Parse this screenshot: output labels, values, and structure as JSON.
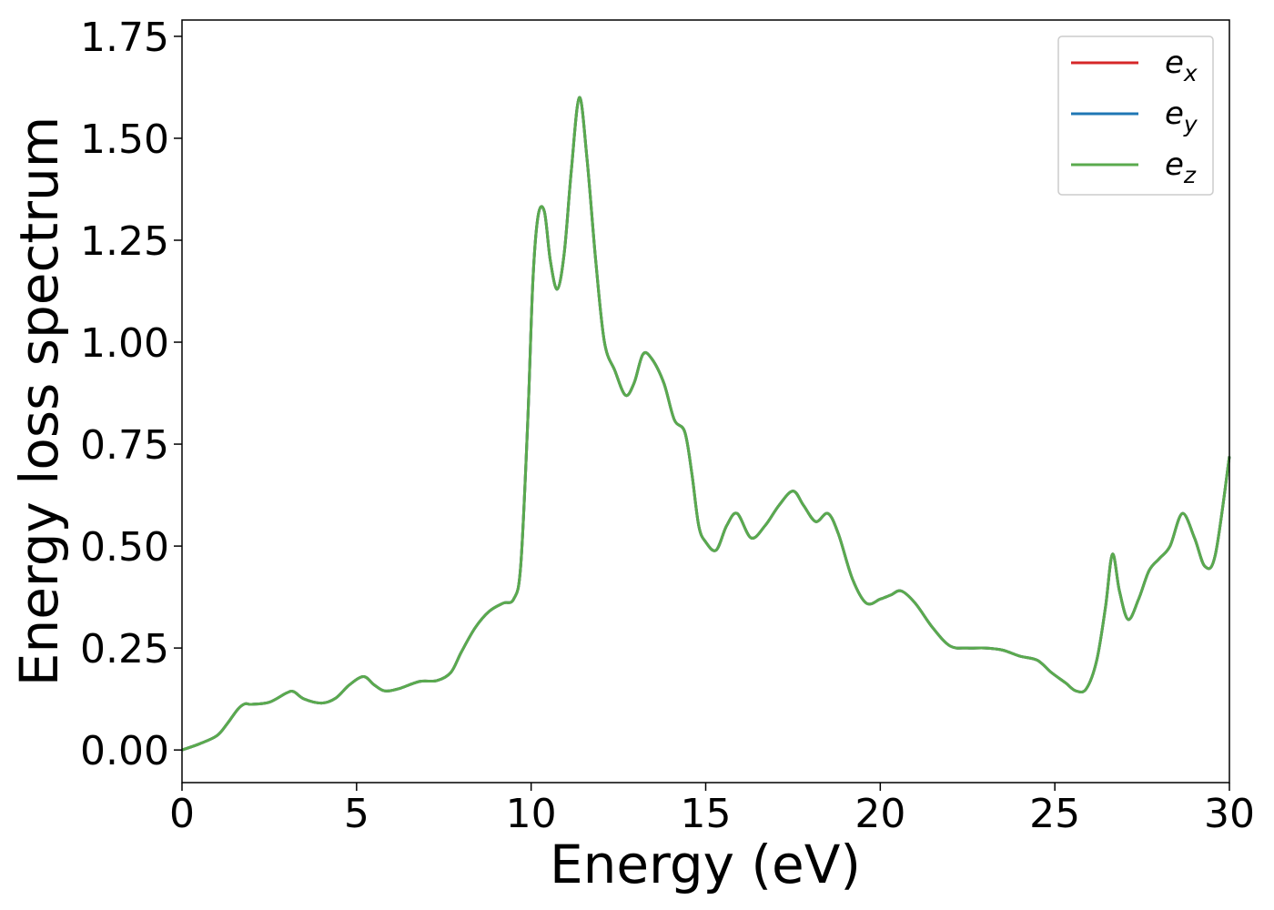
{
  "chart_data": {
    "type": "line",
    "xlabel": "Energy (eV)",
    "ylabel": "Energy loss spectrum",
    "xlim": [
      0,
      30
    ],
    "ylim": [
      -0.08,
      1.79
    ],
    "xticks": [
      0,
      5,
      10,
      15,
      20,
      25,
      30
    ],
    "xtick_labels": [
      "0",
      "5",
      "10",
      "15",
      "20",
      "25",
      "30"
    ],
    "yticks": [
      0,
      0.25,
      0.5,
      0.75,
      1.0,
      1.25,
      1.5,
      1.75
    ],
    "ytick_labels": [
      "0.00",
      "0.25",
      "0.50",
      "0.75",
      "1.00",
      "1.25",
      "1.50",
      "1.75"
    ],
    "grid": false,
    "legend_position": "top-right",
    "x": [
      0,
      0.5,
      1.0,
      1.3,
      1.6,
      1.8,
      2.0,
      2.5,
      3.0,
      3.2,
      3.5,
      4.0,
      4.4,
      4.8,
      5.2,
      5.5,
      5.8,
      6.2,
      6.8,
      7.3,
      7.7,
      8.0,
      8.4,
      8.8,
      9.2,
      9.5,
      9.7,
      9.9,
      10.05,
      10.2,
      10.38,
      10.55,
      10.75,
      10.95,
      11.15,
      11.38,
      11.6,
      11.85,
      12.1,
      12.4,
      12.7,
      12.95,
      13.2,
      13.45,
      13.8,
      14.1,
      14.4,
      14.6,
      14.8,
      15.0,
      15.3,
      15.6,
      15.9,
      16.3,
      16.7,
      17.1,
      17.5,
      17.8,
      18.15,
      18.5,
      18.8,
      19.2,
      19.6,
      20.0,
      20.3,
      20.6,
      21.0,
      21.5,
      22.0,
      22.5,
      23.0,
      23.5,
      24.0,
      24.5,
      24.9,
      25.3,
      25.6,
      25.9,
      26.2,
      26.45,
      26.65,
      26.85,
      27.1,
      27.4,
      27.7,
      28.0,
      28.3,
      28.65,
      29.0,
      29.3,
      29.6,
      30.0
    ],
    "series": [
      {
        "name": "e_x",
        "color": "#d62728",
        "values": [
          0.0,
          0.015,
          0.035,
          0.065,
          0.1,
          0.113,
          0.112,
          0.117,
          0.14,
          0.143,
          0.125,
          0.115,
          0.127,
          0.16,
          0.18,
          0.16,
          0.145,
          0.15,
          0.168,
          0.17,
          0.19,
          0.24,
          0.3,
          0.34,
          0.36,
          0.37,
          0.45,
          0.8,
          1.15,
          1.31,
          1.32,
          1.2,
          1.13,
          1.22,
          1.42,
          1.6,
          1.45,
          1.2,
          1.0,
          0.93,
          0.87,
          0.9,
          0.97,
          0.96,
          0.9,
          0.81,
          0.78,
          0.68,
          0.55,
          0.51,
          0.49,
          0.55,
          0.58,
          0.52,
          0.55,
          0.6,
          0.635,
          0.6,
          0.56,
          0.58,
          0.53,
          0.42,
          0.36,
          0.37,
          0.38,
          0.39,
          0.36,
          0.3,
          0.255,
          0.25,
          0.25,
          0.245,
          0.23,
          0.22,
          0.19,
          0.165,
          0.145,
          0.15,
          0.22,
          0.35,
          0.48,
          0.39,
          0.32,
          0.37,
          0.44,
          0.47,
          0.5,
          0.58,
          0.52,
          0.45,
          0.48,
          0.72
        ]
      },
      {
        "name": "e_y",
        "color": "#1f77b4",
        "values": [
          0.0,
          0.015,
          0.035,
          0.065,
          0.1,
          0.113,
          0.112,
          0.117,
          0.14,
          0.143,
          0.125,
          0.115,
          0.127,
          0.16,
          0.18,
          0.16,
          0.145,
          0.15,
          0.168,
          0.17,
          0.19,
          0.24,
          0.3,
          0.34,
          0.36,
          0.37,
          0.45,
          0.8,
          1.15,
          1.31,
          1.32,
          1.2,
          1.13,
          1.22,
          1.42,
          1.6,
          1.45,
          1.2,
          1.0,
          0.93,
          0.87,
          0.9,
          0.97,
          0.96,
          0.9,
          0.81,
          0.78,
          0.68,
          0.55,
          0.51,
          0.49,
          0.55,
          0.58,
          0.52,
          0.55,
          0.6,
          0.635,
          0.6,
          0.56,
          0.58,
          0.53,
          0.42,
          0.36,
          0.37,
          0.38,
          0.39,
          0.36,
          0.3,
          0.255,
          0.25,
          0.25,
          0.245,
          0.23,
          0.22,
          0.19,
          0.165,
          0.145,
          0.15,
          0.22,
          0.35,
          0.48,
          0.39,
          0.32,
          0.37,
          0.44,
          0.47,
          0.5,
          0.58,
          0.52,
          0.45,
          0.48,
          0.72
        ]
      },
      {
        "name": "e_z",
        "color": "#5aaa4e",
        "values": [
          0.0,
          0.015,
          0.035,
          0.065,
          0.1,
          0.113,
          0.112,
          0.117,
          0.14,
          0.143,
          0.125,
          0.115,
          0.127,
          0.16,
          0.18,
          0.16,
          0.145,
          0.15,
          0.168,
          0.17,
          0.19,
          0.24,
          0.3,
          0.34,
          0.36,
          0.37,
          0.45,
          0.8,
          1.15,
          1.31,
          1.32,
          1.2,
          1.13,
          1.22,
          1.42,
          1.6,
          1.45,
          1.2,
          1.0,
          0.93,
          0.87,
          0.9,
          0.97,
          0.96,
          0.9,
          0.81,
          0.78,
          0.68,
          0.55,
          0.51,
          0.49,
          0.55,
          0.58,
          0.52,
          0.55,
          0.6,
          0.635,
          0.6,
          0.56,
          0.58,
          0.53,
          0.42,
          0.36,
          0.37,
          0.38,
          0.39,
          0.36,
          0.3,
          0.255,
          0.25,
          0.25,
          0.245,
          0.23,
          0.22,
          0.19,
          0.165,
          0.145,
          0.15,
          0.22,
          0.35,
          0.48,
          0.39,
          0.32,
          0.37,
          0.44,
          0.47,
          0.5,
          0.58,
          0.52,
          0.45,
          0.48,
          0.72
        ]
      }
    ],
    "legend": [
      {
        "base": "e",
        "sub": "x",
        "color": "#d62728"
      },
      {
        "base": "e",
        "sub": "y",
        "color": "#1f77b4"
      },
      {
        "base": "e",
        "sub": "z",
        "color": "#5aaa4e"
      }
    ]
  }
}
